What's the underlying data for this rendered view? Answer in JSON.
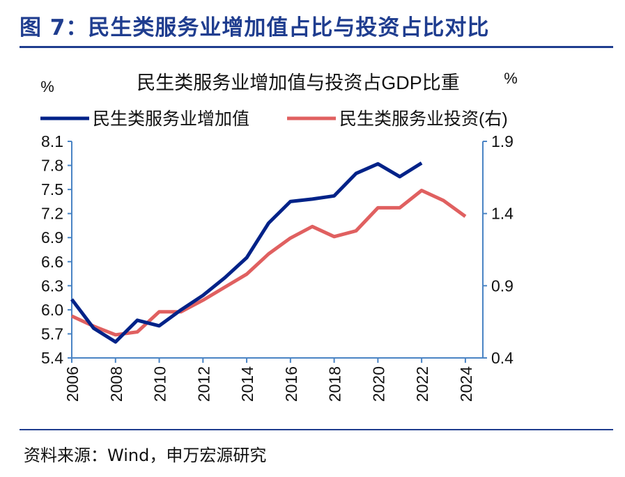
{
  "figure": {
    "title": "图 7：民生类服务业增加值占比与投资占比对比",
    "source": "资料来源：Wind，申万宏源研究"
  },
  "chart_data": {
    "type": "line",
    "title": "民生类服务业增加值与投资占GDP比重",
    "left_unit": "%",
    "right_unit": "%",
    "x_ticks": [
      "2006",
      "2008",
      "2010",
      "2012",
      "2014",
      "2016",
      "2018",
      "2020",
      "2022",
      "2024"
    ],
    "xlim": [
      2006,
      2024.8
    ],
    "y_left": {
      "min": 5.4,
      "max": 8.1,
      "ticks": [
        "8.1",
        "7.8",
        "7.5",
        "7.2",
        "6.9",
        "6.6",
        "6.3",
        "6.0",
        "5.7",
        "5.4"
      ]
    },
    "y_right": {
      "min": 0.4,
      "max": 1.9,
      "ticks": [
        "1.9",
        "1.4",
        "0.9",
        "0.4"
      ]
    },
    "legend_position": "top-left",
    "grid": false,
    "colors": {
      "series1": "#002288",
      "series2": "#e06060",
      "axis": "#4a84c4"
    },
    "series": [
      {
        "name": "民生类服务业增加值",
        "axis": "left",
        "x": [
          2006,
          2007,
          2008,
          2009,
          2010,
          2011,
          2012,
          2013,
          2014,
          2015,
          2016,
          2017,
          2018,
          2019,
          2020,
          2021,
          2022
        ],
        "values": [
          6.13,
          5.77,
          5.6,
          5.87,
          5.8,
          6.0,
          6.18,
          6.4,
          6.65,
          7.08,
          7.35,
          7.38,
          7.42,
          7.7,
          7.82,
          7.66,
          7.83
        ]
      },
      {
        "name": "民生类服务业投资(右)",
        "axis": "right",
        "x": [
          2006,
          2007,
          2008,
          2009,
          2010,
          2011,
          2012,
          2013,
          2014,
          2015,
          2016,
          2017,
          2018,
          2019,
          2020,
          2021,
          2022,
          2023,
          2024
        ],
        "values": [
          0.69,
          0.62,
          0.56,
          0.58,
          0.72,
          0.72,
          0.8,
          0.89,
          0.98,
          1.12,
          1.23,
          1.31,
          1.24,
          1.28,
          1.44,
          1.44,
          1.56,
          1.49,
          1.38
        ]
      }
    ]
  }
}
